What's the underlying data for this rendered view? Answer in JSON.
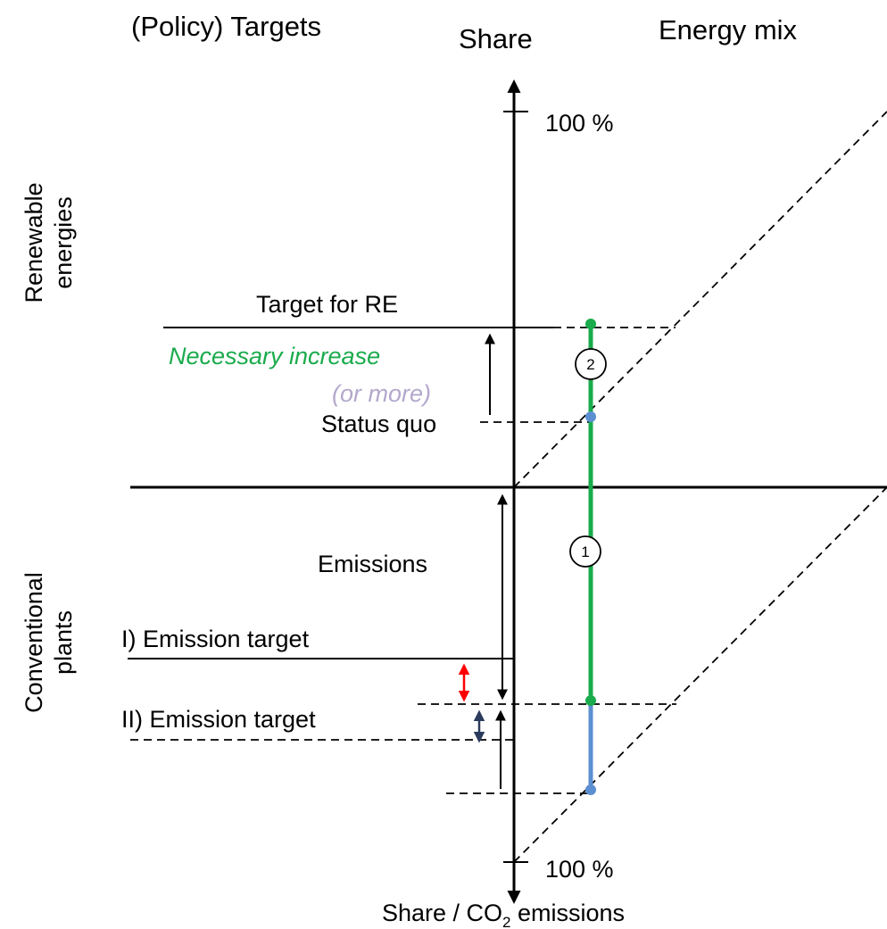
{
  "headers": {
    "policy_targets": "(Policy) Targets",
    "share": "Share",
    "energy_mix": "Energy mix"
  },
  "axis": {
    "top_tick": "100 %",
    "bottom_tick": "100 %",
    "bottom_label_prefix": "Share / CO",
    "bottom_label_sub": "2",
    "bottom_label_suffix": " emissions"
  },
  "side_labels": {
    "upper_line1": "Renewable",
    "upper_line2": "energies",
    "lower_line1": "Conventional",
    "lower_line2": "plants"
  },
  "labels": {
    "target_re": "Target for RE",
    "necessary_increase": "Necessary increase",
    "or_more": "(or more)",
    "status_quo": "Status quo",
    "emissions": "Emissions",
    "emission_target_1": "I) Emission target",
    "emission_target_2": "II) Emission target"
  },
  "markers": {
    "one": "1",
    "two": "2"
  },
  "colors": {
    "green": "#1aab4c",
    "blue": "#5b8fd1",
    "red": "#ff0000",
    "navy": "#2a3b5c",
    "gray_text": "#b3a8cc",
    "black": "#000000"
  }
}
